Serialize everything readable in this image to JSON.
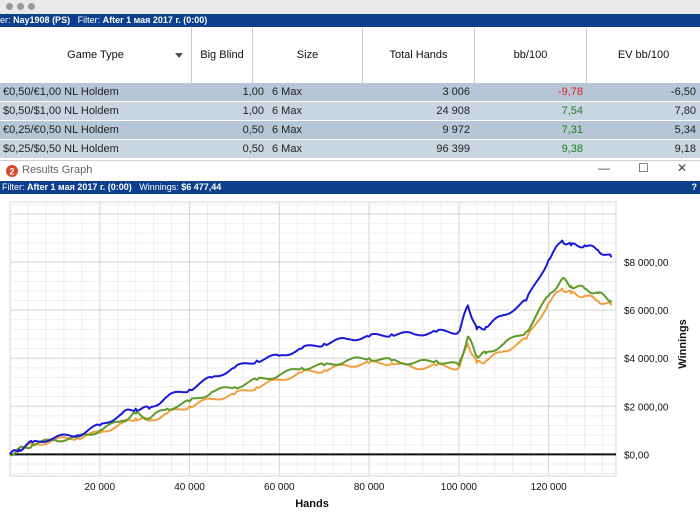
{
  "top_filter": {
    "prefix": "er:",
    "player": "Nay1908 (PS)",
    "label": "Filter:",
    "value": "After 1 мая 2017 г. (0:00)"
  },
  "table": {
    "columns": [
      "Game Type",
      "Big Blind",
      "Size",
      "Total Hands",
      "bb/100",
      "EV bb/100"
    ],
    "rows": [
      {
        "game": "€0,50/€1,00 NL Holdem",
        "bb": "1,00",
        "size": "6 Max",
        "hands": "3 006",
        "bb100": "-9,78",
        "bb100_color": "#e02020",
        "ev": "-6,50"
      },
      {
        "game": "$0,50/$1,00 NL Holdem",
        "bb": "1,00",
        "size": "6 Max",
        "hands": "24 908",
        "bb100": "7,54",
        "bb100_color": "#1a7f1a",
        "ev": "7,80"
      },
      {
        "game": "€0,25/€0,50 NL Holdem",
        "bb": "0,50",
        "size": "6 Max",
        "hands": "9 972",
        "bb100": "7,31",
        "bb100_color": "#1a7f1a",
        "ev": "5,34"
      },
      {
        "game": "$0,25/$0,50 NL Holdem",
        "bb": "0,50",
        "size": "6 Max",
        "hands": "96 399",
        "bb100": "9,38",
        "bb100_color": "#1a7f1a",
        "ev": "9,18"
      }
    ]
  },
  "graph_window": {
    "title": "Results Graph",
    "icon": "app-logo-icon",
    "controls": {
      "minimize": "—",
      "maximize": "☐",
      "close": "✕"
    },
    "filter_label": "Filter:",
    "filter_value": "After 1 мая 2017 г. (0:00)",
    "winnings_label": "Winnings:",
    "winnings_value": "$6 477,44",
    "help": "?"
  },
  "chart_data": {
    "type": "line",
    "xlabel": "Hands",
    "ylabel": "Winnings",
    "xlim": [
      0,
      135000
    ],
    "ylim": [
      -900,
      10500
    ],
    "x_ticks": [
      20000,
      40000,
      60000,
      80000,
      100000,
      120000
    ],
    "x_tick_labels": [
      "20 000",
      "40 000",
      "60 000",
      "80 000",
      "100 000",
      "120 000"
    ],
    "y_ticks": [
      0,
      2000,
      4000,
      6000,
      8000
    ],
    "y_tick_labels": [
      "$0,00",
      "$2 000,00",
      "$4 000,00",
      "$6 000,00",
      "$8 000,00"
    ],
    "grid": true,
    "series": [
      {
        "color": "#1a1ad6",
        "x": [
          0,
          2000,
          5000,
          10000,
          15000,
          20000,
          25000,
          28000,
          31000,
          35000,
          40000,
          45000,
          50000,
          55000,
          60000,
          65000,
          70000,
          75000,
          80000,
          85000,
          90000,
          95000,
          100000,
          102000,
          104000,
          106000,
          110000,
          115000,
          120000,
          123000,
          125000,
          128000,
          131000,
          134000
        ],
        "y": [
          0,
          200,
          500,
          700,
          800,
          1200,
          1700,
          1900,
          1900,
          2400,
          2700,
          3200,
          3600,
          3900,
          4100,
          4400,
          4600,
          4800,
          4900,
          5000,
          5000,
          5100,
          5100,
          6200,
          5200,
          5300,
          5800,
          6400,
          8100,
          8900,
          8700,
          8700,
          8500,
          8200
        ]
      },
      {
        "color": "#5f9a2a",
        "x": [
          0,
          2000,
          5000,
          10000,
          15000,
          20000,
          25000,
          28000,
          31000,
          35000,
          40000,
          45000,
          50000,
          55000,
          60000,
          65000,
          70000,
          75000,
          80000,
          85000,
          90000,
          95000,
          100000,
          102000,
          104000,
          106000,
          110000,
          115000,
          120000,
          123000,
          125000,
          128000,
          131000,
          134000
        ],
        "y": [
          0,
          200,
          400,
          600,
          700,
          1000,
          1400,
          1700,
          1500,
          1900,
          2200,
          2600,
          2800,
          3100,
          3300,
          3600,
          3700,
          3900,
          4000,
          3900,
          3800,
          3900,
          3700,
          4900,
          4100,
          4200,
          4600,
          5100,
          6600,
          7300,
          7000,
          6900,
          6700,
          6400
        ]
      },
      {
        "color": "#f0a040",
        "x": [
          0,
          2000,
          5000,
          10000,
          15000,
          20000,
          25000,
          28000,
          31000,
          35000,
          40000,
          45000,
          50000,
          55000,
          60000,
          65000,
          70000,
          75000,
          80000,
          85000,
          90000,
          95000,
          100000,
          102000,
          104000,
          106000,
          110000,
          115000,
          120000,
          123000,
          125000,
          128000,
          131000,
          134000
        ],
        "y": [
          0,
          200,
          400,
          600,
          700,
          900,
          1300,
          1500,
          1400,
          1700,
          2000,
          2300,
          2500,
          2800,
          3100,
          3400,
          3500,
          3700,
          3800,
          3800,
          3600,
          3700,
          3600,
          4600,
          3800,
          3900,
          4300,
          4800,
          6300,
          6900,
          6700,
          6600,
          6400,
          6200
        ]
      }
    ]
  }
}
